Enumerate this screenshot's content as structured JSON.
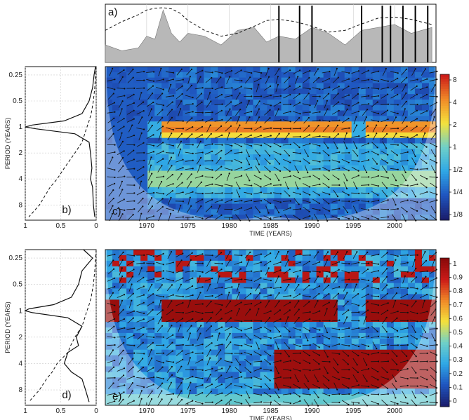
{
  "chart_data": [
    {
      "panel": "a",
      "type": "area",
      "panel_label": "a)",
      "x": [
        1965,
        1967,
        1969,
        1970,
        1971,
        1972,
        1973,
        1974,
        1975,
        1977,
        1979,
        1981,
        1983,
        1984.5,
        1986,
        1988,
        1990,
        1992,
        1994,
        1996,
        1998,
        2000,
        2002,
        2004.5
      ],
      "series": [
        {
          "values": [
            0.3,
            0.2,
            0.25,
            0.45,
            0.4,
            0.9,
            0.5,
            0.35,
            0.5,
            0.45,
            0.3,
            0.55,
            0.6,
            0.35,
            0.45,
            0.4,
            0.6,
            0.5,
            0.3,
            0.55,
            0.6,
            0.65,
            0.5,
            0.6
          ]
        },
        {
          "values": [
            0.55,
            0.7,
            0.82,
            0.9,
            0.93,
            0.94,
            0.92,
            0.85,
            0.72,
            0.55,
            0.45,
            0.5,
            0.62,
            0.72,
            0.74,
            0.7,
            0.62,
            0.52,
            0.55,
            0.66,
            0.76,
            0.78,
            0.74,
            0.65
          ]
        }
      ],
      "spike_years": [
        1986.0,
        1988.5,
        1990.0,
        1996.0,
        1998.5,
        1999.5,
        2001.0,
        2002.5,
        2004.0
      ],
      "xlim": [
        1965,
        2005
      ],
      "ylim": [
        0,
        1
      ]
    },
    {
      "panel": "b",
      "type": "line",
      "panel_label": "b)",
      "xticks": [
        "1",
        "0.5",
        "0"
      ],
      "yticks": [
        "0.25",
        "0.5",
        "1",
        "2",
        "4",
        "8"
      ],
      "ylabel": "PERIOD (YEARS)",
      "period": [
        0.2,
        0.25,
        0.35,
        0.5,
        0.7,
        0.85,
        0.95,
        1.0,
        1.05,
        1.2,
        1.5,
        2,
        3,
        4,
        5,
        8,
        11
      ],
      "series": [
        {
          "values": [
            0.01,
            0.03,
            0.05,
            0.1,
            0.2,
            0.45,
            0.9,
            1.0,
            0.85,
            0.3,
            0.1,
            0.08,
            0.06,
            0.08,
            0.05,
            0.04,
            0.02
          ]
        },
        {
          "values": [
            0.0,
            0.01,
            0.02,
            0.04,
            0.07,
            0.1,
            0.12,
            0.13,
            0.14,
            0.16,
            0.2,
            0.3,
            0.45,
            0.55,
            0.65,
            0.8,
            0.95
          ]
        }
      ]
    },
    {
      "panel": "c",
      "type": "heatmap",
      "panel_label": "c)",
      "xlabel": "TIME (YEARS)",
      "xticks": [
        1970,
        1975,
        1980,
        1985,
        1990,
        1995,
        2000
      ],
      "xlim": [
        1965,
        2005
      ],
      "yticks": [
        "0.25",
        "0.5",
        "1",
        "2",
        "4",
        "8"
      ],
      "colorbar_ticks": [
        "8",
        "4",
        "2",
        "1",
        "1/2",
        "1/4",
        "1/8"
      ],
      "colors": [
        "#1b1e6e",
        "#1f56c0",
        "#2fa8e6",
        "#6fd0c8",
        "#f4e23c",
        "#f08a28",
        "#cc1b18"
      ],
      "power_at_1yr": [
        0.5,
        0.5,
        0.5,
        0.5,
        6,
        6,
        6,
        8,
        6,
        6,
        6,
        6,
        6,
        6,
        6,
        8,
        8,
        6,
        0.5,
        6,
        6,
        6,
        6,
        6
      ]
    },
    {
      "panel": "d",
      "type": "line",
      "panel_label": "d)",
      "xticks": [
        "1",
        "0.5",
        "0"
      ],
      "yticks": [
        "0.25",
        "0.5",
        "1",
        "2",
        "4",
        "8"
      ],
      "ylabel": "PERIOD (YEARS)",
      "period": [
        0.2,
        0.25,
        0.35,
        0.5,
        0.7,
        0.85,
        0.95,
        1.0,
        1.05,
        1.2,
        1.5,
        2,
        2.5,
        3,
        4,
        5,
        6,
        8,
        11
      ],
      "series": [
        {
          "values": [
            0.18,
            0.05,
            0.2,
            0.25,
            0.35,
            0.6,
            0.95,
            1.0,
            0.9,
            0.4,
            0.2,
            0.28,
            0.25,
            0.4,
            0.45,
            0.35,
            0.2,
            0.15,
            0.1
          ]
        },
        {
          "values": [
            0.0,
            0.01,
            0.02,
            0.04,
            0.07,
            0.1,
            0.12,
            0.13,
            0.14,
            0.16,
            0.2,
            0.3,
            0.36,
            0.4,
            0.55,
            0.62,
            0.7,
            0.8,
            0.95
          ]
        }
      ]
    },
    {
      "panel": "e",
      "type": "heatmap",
      "panel_label": "e)",
      "xlabel": "TIME (YEARS)",
      "xticks": [
        1970,
        1975,
        1980,
        1985,
        1990,
        1995,
        2000
      ],
      "xlim": [
        1965,
        2005
      ],
      "yticks": [
        "0.25",
        "0.5",
        "1",
        "2",
        "4",
        "8"
      ],
      "colorbar_ticks": [
        "1",
        "0.9",
        "0.8",
        "0.7",
        "0.6",
        "0.5",
        "0.4",
        "0.3",
        "0.2",
        "0.1",
        "0"
      ],
      "colors": [
        "#1b1e6e",
        "#1f56c0",
        "#2fa8e6",
        "#6fd0c8",
        "#f4e23c",
        "#f08a28",
        "#cc1b18",
        "#8b0a0a"
      ],
      "coherence_at_1yr": [
        0.9,
        0.2,
        0.2,
        0.2,
        0.95,
        0.95,
        0.95,
        0.95,
        0.95,
        0.95,
        0.95,
        0.95,
        0.95,
        0.95,
        0.95,
        0.95,
        0.95,
        0.3,
        0.3,
        0.95,
        0.95,
        0.95,
        0.95,
        0.95
      ]
    }
  ]
}
